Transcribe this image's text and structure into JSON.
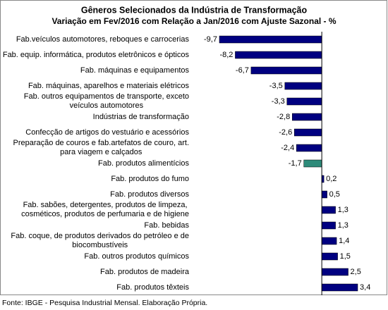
{
  "chart_data": {
    "type": "bar",
    "orientation": "horizontal",
    "title": "Gêneros Selecionados da Indústria de Transformação",
    "subtitle": "Variação em Fev/2016 com Relação a Jan/2016 com Ajuste Sazonal - %",
    "categories": [
      "Fab.veículos automotores, reboques e carrocerias",
      "Fab. equip. informática, produtos eletrônicos e ópticos",
      "Fab. máquinas e equipamentos",
      "Fab. máquinas, aparelhos e materiais elétricos",
      "Fab. outros equipamentos de transporte, exceto\nveículos automotores",
      "Indústrias de transformação",
      "Confecção de artigos do vestuário e acessórios",
      "Preparação de couros e fab.artefatos de couro, art.\npara viagem e calçados",
      "Fab. produtos alimentícios",
      "Fab. produtos do fumo",
      "Fab. produtos diversos",
      "Fab. sabões, detergentes, produtos de limpeza,\ncosméticos, produtos de perfumaria e de higiene",
      "Fab. bebidas",
      "Fab. coque, de produtos derivados do petróleo e de\nbiocombustíveis",
      "Fab. outros produtos químicos",
      "Fab. produtos de madeira",
      "Fab. produtos têxteis"
    ],
    "values": [
      -9.7,
      -8.2,
      -6.7,
      -3.5,
      -3.3,
      -2.8,
      -2.6,
      -2.4,
      -1.7,
      0.2,
      0.5,
      1.3,
      1.3,
      1.4,
      1.5,
      2.5,
      3.4
    ],
    "value_labels": [
      "-9,7",
      "-8,2",
      "-6,7",
      "-3,5",
      "-3,3",
      "-2,8",
      "-2,6",
      "-2,4",
      "-1,7",
      "0,2",
      "0,5",
      "1,3",
      "1,3",
      "1,4",
      "1,5",
      "2,5",
      "3,4"
    ],
    "colors": [
      "#000080",
      "#000080",
      "#000080",
      "#000080",
      "#000080",
      "#000080",
      "#000080",
      "#000080",
      "#2e8b7a",
      "#000080",
      "#000080",
      "#000080",
      "#000080",
      "#000080",
      "#000080",
      "#000080",
      "#000080"
    ],
    "xlim": [
      -10,
      4
    ],
    "source": "Fonte: IBGE - Pesquisa Industrial Mensal. Elaboração Própria."
  }
}
